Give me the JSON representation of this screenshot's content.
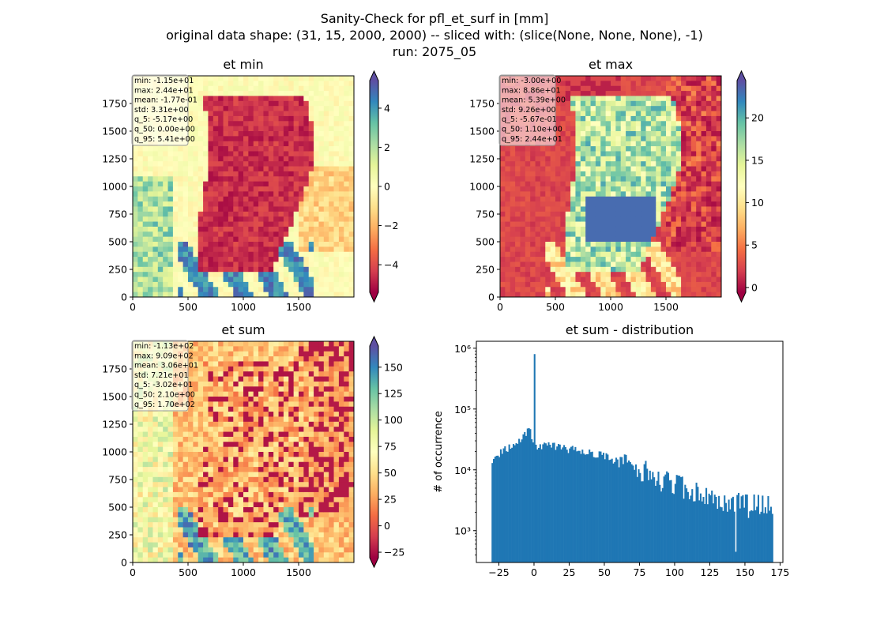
{
  "figure": {
    "title_lines": [
      "Sanity-Check for pfl_et_surf in [mm]",
      "original data shape: (31, 15, 2000, 2000) -- sliced with: (slice(None, None, None), -1)",
      "run: 2075_05"
    ]
  },
  "chart_data": [
    {
      "type": "heatmap",
      "title": "et min",
      "xlim": [
        0,
        2000
      ],
      "ylim": [
        0,
        2000
      ],
      "xticks": [
        "0",
        "500",
        "1000",
        "1500"
      ],
      "yticks": [
        "0",
        "250",
        "500",
        "750",
        "1000",
        "1250",
        "1500",
        "1750"
      ],
      "colormap": "Spectral",
      "colorbar": {
        "vmin": -5.41,
        "vmax": 5.41,
        "ticks": [
          "−4",
          "−2",
          "0",
          "2",
          "4"
        ],
        "tick_values": [
          -4,
          -2,
          0,
          2,
          4
        ],
        "extend": "both"
      },
      "stats": [
        "min: -1.15e+01",
        "max: 2.44e+01",
        "mean: -1.77e-01",
        "std: 3.31e+00",
        "q_5: -5.17e+00",
        "q_50: 0.00e+00",
        "q_95: 5.41e+00"
      ]
    },
    {
      "type": "heatmap",
      "title": "et max",
      "xlim": [
        0,
        2000
      ],
      "ylim": [
        0,
        2000
      ],
      "xticks": [
        "0",
        "500",
        "1000",
        "1500"
      ],
      "yticks": [
        "0",
        "250",
        "500",
        "750",
        "1000",
        "1250",
        "1500",
        "1750"
      ],
      "colormap": "Spectral",
      "colorbar": {
        "vmin": -0.567,
        "vmax": 24.4,
        "ticks": [
          "0",
          "5",
          "10",
          "15",
          "20"
        ],
        "tick_values": [
          0,
          5,
          10,
          15,
          20
        ],
        "extend": "both"
      },
      "stats": [
        "min: -3.00e+00",
        "max: 8.86e+01",
        "mean: 5.39e+00",
        "std: 9.26e+00",
        "q_5: -5.67e-01",
        "q_50: 1.10e+00",
        "q_95: 2.44e+01"
      ]
    },
    {
      "type": "heatmap",
      "title": "et sum",
      "xlim": [
        0,
        2000
      ],
      "ylim": [
        0,
        2000
      ],
      "xticks": [
        "0",
        "500",
        "1000",
        "1500"
      ],
      "yticks": [
        "0",
        "250",
        "500",
        "750",
        "1000",
        "1250",
        "1500",
        "1750"
      ],
      "colormap": "Spectral",
      "colorbar": {
        "vmin": -30.2,
        "vmax": 170,
        "ticks": [
          "−25",
          "0",
          "25",
          "50",
          "75",
          "100",
          "125",
          "150"
        ],
        "tick_values": [
          -25,
          0,
          25,
          50,
          75,
          100,
          125,
          150
        ],
        "extend": "both"
      },
      "stats": [
        "min: -1.13e+02",
        "max: 9.09e+02",
        "mean: 3.06e+01",
        "std: 7.21e+01",
        "q_5: -3.02e+01",
        "q_50: 2.10e+00",
        "q_95: 1.70e+02"
      ]
    },
    {
      "type": "bar",
      "title": "et sum - distribution",
      "xlabel": "",
      "ylabel": "# of occurrence",
      "yscale": "log",
      "xlim": [
        -41,
        177
      ],
      "ylim": [
        300,
        1300000
      ],
      "xticks": [
        "−25",
        "0",
        "25",
        "50",
        "75",
        "100",
        "125",
        "150",
        "175"
      ],
      "xtick_values": [
        -25,
        0,
        25,
        50,
        75,
        100,
        125,
        150,
        175
      ],
      "yticks": [
        "10³",
        "10⁴",
        "10⁵",
        "10⁶"
      ],
      "ytick_values": [
        1000,
        10000,
        100000,
        1000000
      ],
      "bar_color": "#1f77b4",
      "bin_range": [
        -30.2,
        170
      ],
      "spike": {
        "x": 0,
        "value": 800000
      },
      "outlier_bin": {
        "x": 143,
        "value": 450
      },
      "envelope": [
        {
          "x": -30,
          "value": 14000
        },
        {
          "x": -20,
          "value": 22000
        },
        {
          "x": -10,
          "value": 30000
        },
        {
          "x": -3,
          "value": 48000
        },
        {
          "x": -1,
          "value": 32000
        },
        {
          "x": 1,
          "value": 24000
        },
        {
          "x": 10,
          "value": 25000
        },
        {
          "x": 30,
          "value": 21000
        },
        {
          "x": 50,
          "value": 17000
        },
        {
          "x": 70,
          "value": 11000
        },
        {
          "x": 90,
          "value": 7000
        },
        {
          "x": 110,
          "value": 4500
        },
        {
          "x": 130,
          "value": 3200
        },
        {
          "x": 150,
          "value": 2500
        },
        {
          "x": 170,
          "value": 2600
        }
      ]
    }
  ]
}
